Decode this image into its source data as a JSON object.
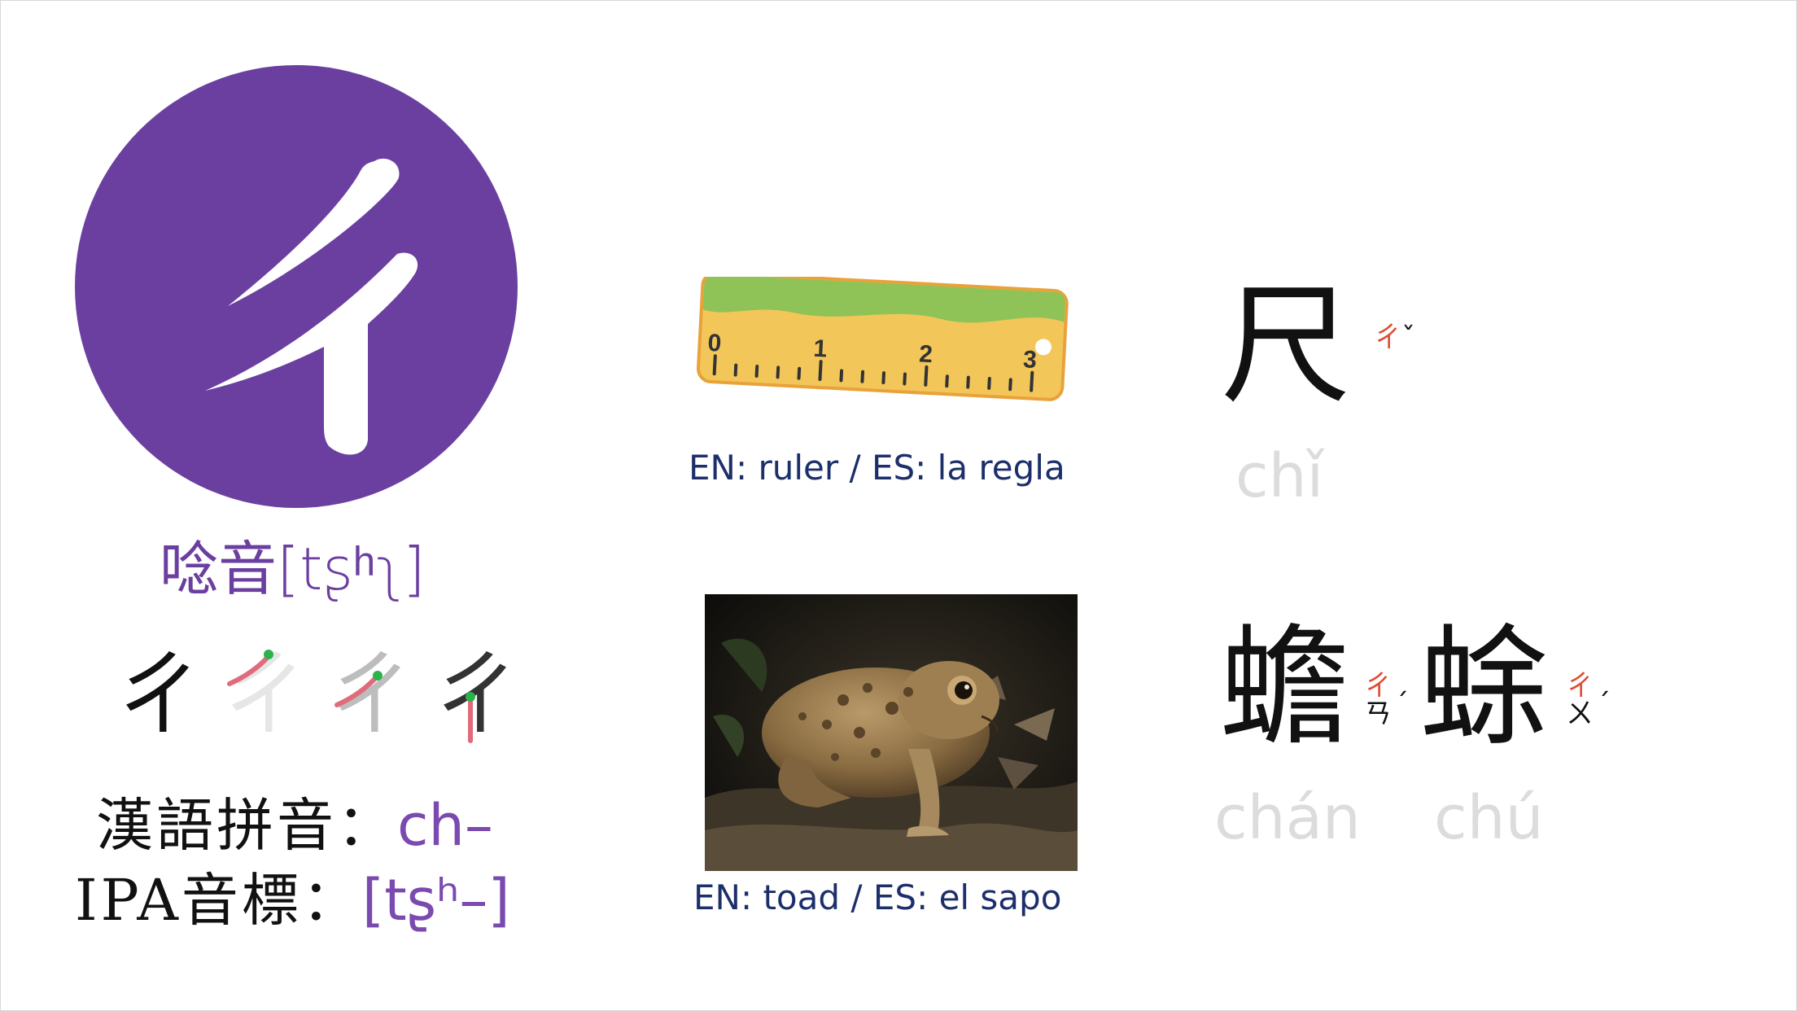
{
  "main_letter": {
    "symbol": "ㄔ",
    "sound_label": "唸音",
    "sound_ipa": "[tʂʰʅ]"
  },
  "stroke_order": [
    "ㄔ",
    "ㄔ",
    "ㄔ",
    "ㄔ"
  ],
  "romanization": {
    "pinyin_label": "漢語拼音：",
    "pinyin_value": "ch–",
    "ipa_label": "IPA音標：",
    "ipa_value": "[tʂʰ–]"
  },
  "examples": [
    {
      "image": "ruler-icon",
      "ruler_marks": [
        "0",
        "1",
        "2",
        "3"
      ],
      "caption": "EN: ruler / ES: la regla",
      "characters": [
        {
          "han": "尺",
          "zhuyin_initial": "ㄔ",
          "zhuyin_rest": "",
          "tone": "ˇ",
          "pinyin": "chǐ"
        }
      ]
    },
    {
      "image": "toad-photo",
      "caption": "EN: toad / ES: el sapo",
      "characters": [
        {
          "han": "蟾",
          "zhuyin_initial": "ㄔ",
          "zhuyin_rest": "ㄢ",
          "tone": "ˊ",
          "pinyin": "chán"
        },
        {
          "han": "蜍",
          "zhuyin_initial": "ㄔ",
          "zhuyin_rest": "ㄨ",
          "tone": "ˊ",
          "pinyin": "chú"
        }
      ]
    }
  ],
  "colors": {
    "circle": "#6b3fa0",
    "accent_text": "#7b4ab0",
    "caption": "#1d2f6b",
    "zhuyin_initial": "#e04a30",
    "pinyin": "#dcdcdc"
  }
}
